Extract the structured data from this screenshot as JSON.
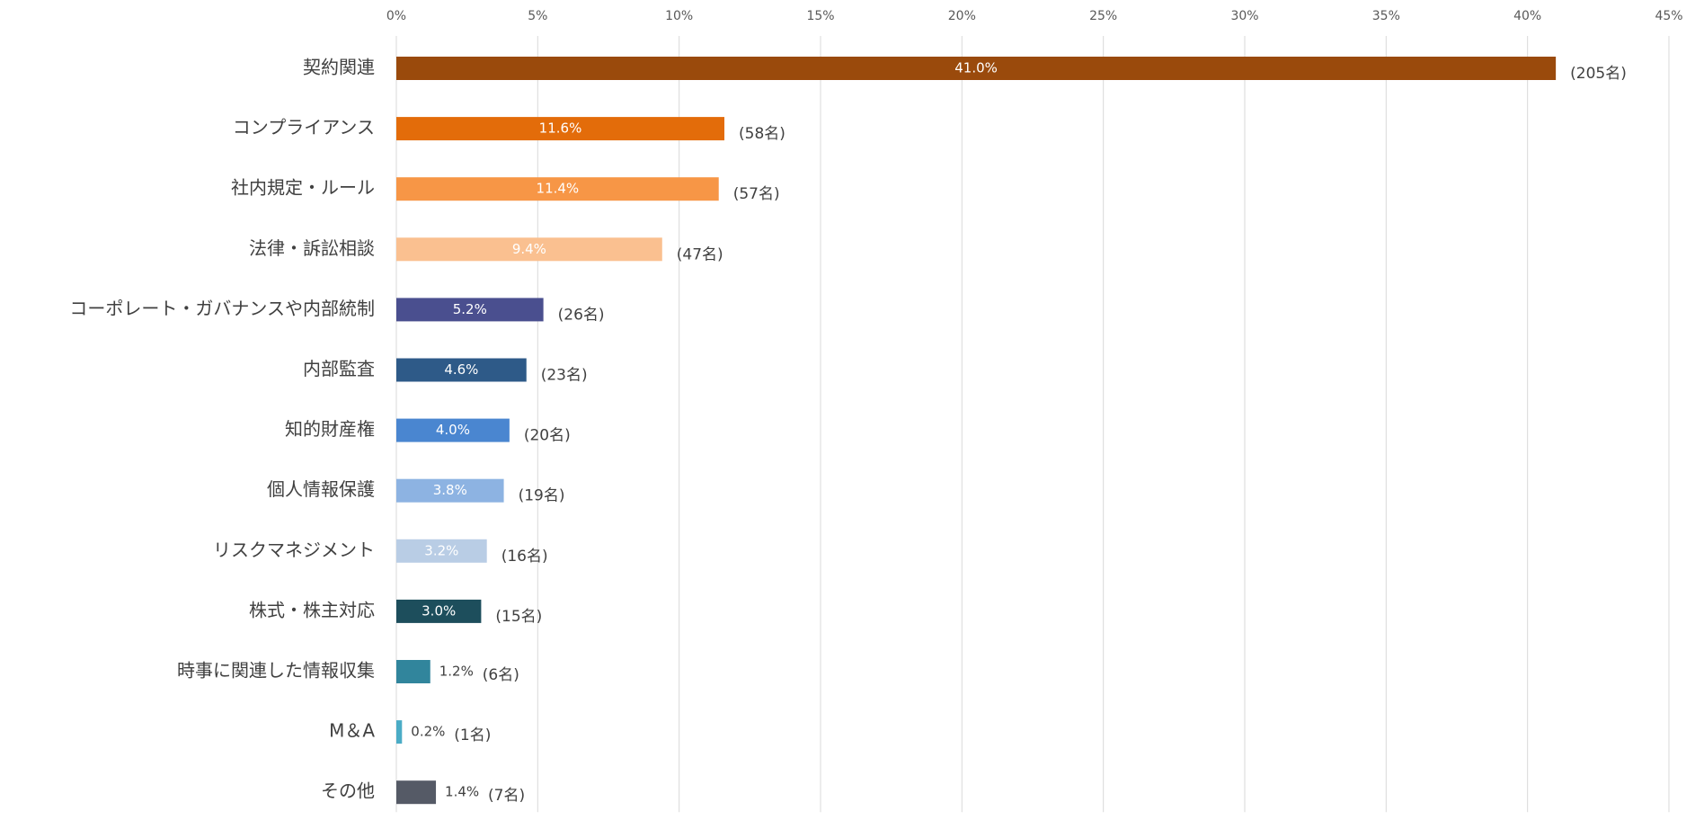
{
  "chart_data": {
    "type": "bar",
    "orientation": "horizontal",
    "categories": [
      "契約関連",
      "コンプライアンス",
      "社内規定・ルール",
      "法律・訴訟相談",
      "コーポレート・ガバナンスや内部統制",
      "内部監査",
      "知的財産権",
      "個人情報保護",
      "リスクマネジメント",
      "株式・株主対応",
      "時事に関連した情報収集",
      "M＆A",
      "その他"
    ],
    "values": [
      41.0,
      11.6,
      11.4,
      9.4,
      5.2,
      4.6,
      4.0,
      3.8,
      3.2,
      3.0,
      1.2,
      0.2,
      1.4
    ],
    "value_labels": [
      "41.0%",
      "11.6%",
      "11.4%",
      "9.4%",
      "5.2%",
      "4.6%",
      "4.0%",
      "3.8%",
      "3.2%",
      "3.0%",
      "1.2%",
      "0.2%",
      "1.4%"
    ],
    "count_labels": [
      "(205名)",
      "(58名)",
      "(57名)",
      "(47名)",
      "(26名)",
      "(23名)",
      "(20名)",
      "(19名)",
      "(16名)",
      "(15名)",
      "(6名)",
      "(1名)",
      "(7名)"
    ],
    "colors": [
      "#9a4a0c",
      "#e36c0a",
      "#f79646",
      "#fac090",
      "#4a4f8f",
      "#2e5a88",
      "#4a86d0",
      "#8db3e2",
      "#b9cde5",
      "#1d4e5c",
      "#31859c",
      "#4bacc6",
      "#555a66"
    ],
    "xlim": [
      0,
      45
    ],
    "xticks": [
      {
        "value": 0,
        "label": "0%"
      },
      {
        "value": 5,
        "label": "5%"
      },
      {
        "value": 10,
        "label": "10%"
      },
      {
        "value": 15,
        "label": "15%"
      },
      {
        "value": 20,
        "label": "20%"
      },
      {
        "value": 25,
        "label": "25%"
      },
      {
        "value": 30,
        "label": "30%"
      },
      {
        "value": 35,
        "label": "35%"
      },
      {
        "value": 40,
        "label": "40%"
      },
      {
        "value": 45,
        "label": "45%"
      }
    ],
    "grid": true
  }
}
